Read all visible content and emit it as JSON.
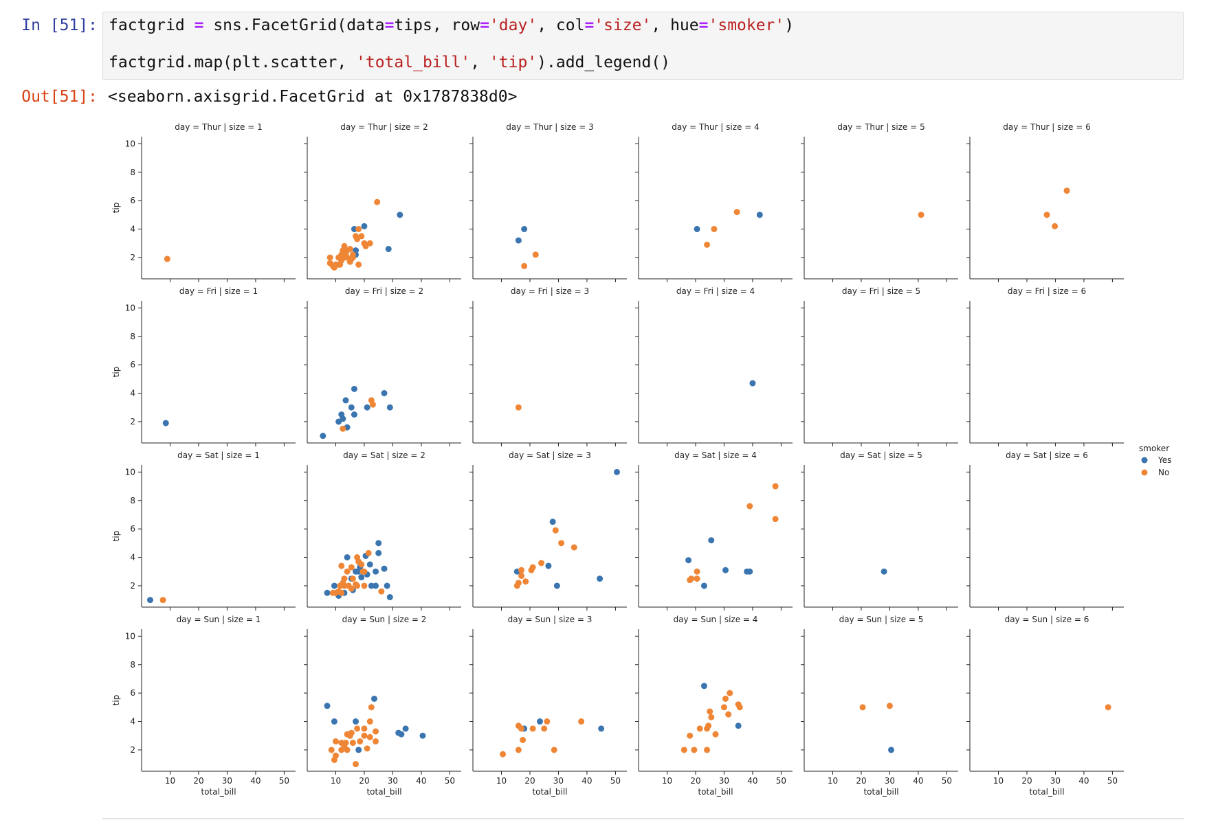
{
  "notebook": {
    "input_prompt": "In [51]:",
    "output_prompt": "Out[51]:",
    "code_line1": [
      {
        "t": "factgrid ",
        "c": ""
      },
      {
        "t": "=",
        "c": "kw"
      },
      {
        "t": " sns.FacetGrid(data",
        "c": ""
      },
      {
        "t": "=",
        "c": "kw"
      },
      {
        "t": "tips, row",
        "c": ""
      },
      {
        "t": "=",
        "c": "kw"
      },
      {
        "t": "'day'",
        "c": "st"
      },
      {
        "t": ", col",
        "c": ""
      },
      {
        "t": "=",
        "c": "kw"
      },
      {
        "t": "'size'",
        "c": "st"
      },
      {
        "t": ", hue",
        "c": ""
      },
      {
        "t": "=",
        "c": "kw"
      },
      {
        "t": "'smoker'",
        "c": "st"
      },
      {
        "t": ")",
        "c": ""
      }
    ],
    "code_line2": [
      {
        "t": "factgrid.map(plt.scatter, ",
        "c": ""
      },
      {
        "t": "'total_bill'",
        "c": "st"
      },
      {
        "t": ", ",
        "c": ""
      },
      {
        "t": "'tip'",
        "c": "st"
      },
      {
        "t": ").add_legend()",
        "c": ""
      }
    ],
    "output_text": "<seaborn.axisgrid.FacetGrid at 0x1787838d0>"
  },
  "chart_data": {
    "type": "scatter",
    "xlabel": "total_bill",
    "ylabel": "tip",
    "xlim": [
      0,
      54
    ],
    "ylim": [
      0.5,
      10.5
    ],
    "xticks": [
      10,
      20,
      30,
      40,
      50
    ],
    "yticks": [
      2,
      4,
      6,
      8,
      10
    ],
    "legend": {
      "title": "smoker",
      "placement": "right",
      "entries": [
        {
          "name": "Yes",
          "color": "#3a75b0"
        },
        {
          "name": "No",
          "color": "#ef8636"
        }
      ]
    },
    "rows": [
      "Thur",
      "Fri",
      "Sat",
      "Sun"
    ],
    "cols": [
      1,
      2,
      3,
      4,
      5,
      6
    ],
    "panel_title_format": "day = {day} | size = {size}",
    "panels": [
      {
        "day": "Thur",
        "size": 1,
        "yes": [],
        "no": [
          [
            9,
            1.9
          ]
        ]
      },
      {
        "day": "Thur",
        "size": 2,
        "yes": [
          [
            16.5,
            4
          ],
          [
            20,
            4.2
          ],
          [
            17,
            2.5
          ],
          [
            32.5,
            5
          ],
          [
            28.5,
            2.6
          ],
          [
            17,
            2.2
          ]
        ],
        "no": [
          [
            24.5,
            5.9
          ],
          [
            18,
            4
          ],
          [
            17,
            3.5
          ],
          [
            20,
            3
          ],
          [
            22,
            3
          ],
          [
            10,
            1.5
          ],
          [
            11,
            1.5
          ],
          [
            12,
            1.8
          ],
          [
            13,
            2
          ],
          [
            14,
            2.5
          ],
          [
            15,
            2.6
          ],
          [
            12,
            2.2
          ],
          [
            16,
            2
          ],
          [
            18,
            1.5
          ],
          [
            8,
            1.6
          ],
          [
            9,
            1.4
          ],
          [
            11,
            2
          ],
          [
            13,
            2.8
          ],
          [
            19,
            3.5
          ],
          [
            15,
            1.7
          ],
          [
            8,
            2
          ],
          [
            9.5,
            1.3
          ],
          [
            11.5,
            1.5
          ],
          [
            14,
            2
          ],
          [
            16,
            2.2
          ],
          [
            17.5,
            3.3
          ],
          [
            20.5,
            2.8
          ],
          [
            12.5,
            2.5
          ],
          [
            15.5,
            1.9
          ],
          [
            13.5,
            2.3
          ]
        ]
      },
      {
        "day": "Thur",
        "size": 3,
        "yes": [
          [
            16,
            3.2
          ],
          [
            18,
            4
          ]
        ],
        "no": [
          [
            22,
            2.2
          ],
          [
            18,
            1.4
          ]
        ]
      },
      {
        "day": "Thur",
        "size": 4,
        "yes": [
          [
            20.5,
            4
          ],
          [
            42.5,
            5
          ]
        ],
        "no": [
          [
            26.5,
            4
          ],
          [
            34.5,
            5.2
          ],
          [
            24,
            2.9
          ]
        ]
      },
      {
        "day": "Thur",
        "size": 5,
        "yes": [],
        "no": [
          [
            41,
            5
          ]
        ]
      },
      {
        "day": "Thur",
        "size": 6,
        "yes": [],
        "no": [
          [
            27,
            5
          ],
          [
            34,
            6.7
          ],
          [
            29.8,
            4.2
          ]
        ]
      },
      {
        "day": "Fri",
        "size": 1,
        "yes": [
          [
            8.5,
            1.9
          ]
        ],
        "no": []
      },
      {
        "day": "Fri",
        "size": 2,
        "yes": [
          [
            16.5,
            4.3
          ],
          [
            13.5,
            3.5
          ],
          [
            15.5,
            3
          ],
          [
            27,
            4
          ],
          [
            29,
            3
          ],
          [
            21,
            3
          ],
          [
            12,
            2.5
          ],
          [
            11,
            2
          ],
          [
            12.5,
            2.2
          ],
          [
            16.5,
            2.5
          ],
          [
            14,
            1.6
          ],
          [
            5.5,
            1
          ]
        ],
        "no": [
          [
            22.5,
            3.5
          ],
          [
            23,
            3.2
          ],
          [
            12.5,
            1.5
          ]
        ]
      },
      {
        "day": "Fri",
        "size": 3,
        "yes": [],
        "no": [
          [
            16,
            3
          ]
        ]
      },
      {
        "day": "Fri",
        "size": 4,
        "yes": [
          [
            40,
            4.7
          ]
        ],
        "no": []
      },
      {
        "day": "Fri",
        "size": 5,
        "yes": [],
        "no": []
      },
      {
        "day": "Fri",
        "size": 6,
        "yes": [],
        "no": []
      },
      {
        "day": "Sat",
        "size": 1,
        "yes": [
          [
            3,
            1
          ]
        ],
        "no": [
          [
            7.5,
            1
          ]
        ]
      },
      {
        "day": "Sat",
        "size": 2,
        "yes": [
          [
            25,
            5
          ],
          [
            14,
            4
          ],
          [
            25,
            4.3
          ],
          [
            18.5,
            3.3
          ],
          [
            22,
            3.5
          ],
          [
            24,
            3
          ],
          [
            27,
            3.2
          ],
          [
            17,
            3
          ],
          [
            19,
            2.6
          ],
          [
            22.5,
            2
          ],
          [
            24,
            2
          ],
          [
            28,
            2
          ],
          [
            13,
            2
          ],
          [
            9.5,
            2
          ],
          [
            7,
            1.5
          ],
          [
            11,
            1.3
          ],
          [
            16,
            1.7
          ],
          [
            29,
            1.2
          ],
          [
            13,
            1.5
          ],
          [
            15.5,
            2.5
          ],
          [
            21,
            2.8
          ],
          [
            11,
            1.5
          ],
          [
            20.5,
            4.1
          ],
          [
            18,
            3
          ]
        ],
        "no": [
          [
            21.5,
            4.3
          ],
          [
            17.5,
            4
          ],
          [
            18,
            3.7
          ],
          [
            15.5,
            3.3
          ],
          [
            19.5,
            3
          ],
          [
            12,
            3.4
          ],
          [
            14,
            3
          ],
          [
            16,
            2.5
          ],
          [
            13,
            2.5
          ],
          [
            20,
            3
          ],
          [
            20,
            2
          ],
          [
            17,
            2.1
          ],
          [
            11.5,
            2
          ],
          [
            12.5,
            2.2
          ],
          [
            14.5,
            2
          ],
          [
            11,
            1.6
          ],
          [
            9,
            1.5
          ],
          [
            10,
            1.5
          ],
          [
            26,
            1.6
          ],
          [
            17.5,
            2
          ],
          [
            12,
            1.5
          ],
          [
            15.5,
            1.8
          ],
          [
            19,
            3.5
          ],
          [
            13,
            2
          ]
        ]
      },
      {
        "day": "Sat",
        "size": 3,
        "yes": [
          [
            50.5,
            10
          ],
          [
            28,
            6.5
          ],
          [
            44.5,
            2.5
          ],
          [
            26.5,
            3.4
          ],
          [
            29.5,
            2
          ],
          [
            15.5,
            3
          ]
        ],
        "no": [
          [
            29,
            5.9
          ],
          [
            31,
            5
          ],
          [
            35.5,
            4.7
          ],
          [
            24,
            3.6
          ],
          [
            21,
            3.3
          ],
          [
            20.5,
            3.1
          ],
          [
            17,
            3.1
          ],
          [
            16,
            2.2
          ],
          [
            18.5,
            2.3
          ],
          [
            17,
            2.7
          ],
          [
            15.5,
            2
          ]
        ]
      },
      {
        "day": "Sat",
        "size": 4,
        "yes": [
          [
            25.5,
            5.2
          ],
          [
            17.5,
            3.8
          ],
          [
            30.5,
            3.1
          ],
          [
            38,
            3
          ],
          [
            39,
            3
          ],
          [
            23,
            2
          ]
        ],
        "no": [
          [
            48,
            9
          ],
          [
            39,
            7.6
          ],
          [
            48,
            6.7
          ],
          [
            20.5,
            3
          ],
          [
            20.5,
            2.5
          ],
          [
            18,
            2.4
          ],
          [
            18.5,
            2.5
          ]
        ]
      },
      {
        "day": "Sat",
        "size": 5,
        "yes": [
          [
            28,
            3
          ]
        ],
        "no": []
      },
      {
        "day": "Sat",
        "size": 6,
        "yes": [],
        "no": []
      },
      {
        "day": "Sun",
        "size": 1,
        "yes": [],
        "no": []
      },
      {
        "day": "Sun",
        "size": 2,
        "yes": [
          [
            7,
            5.1
          ],
          [
            23.5,
            5.6
          ],
          [
            9.5,
            4
          ],
          [
            17,
            4
          ],
          [
            34.5,
            3.5
          ],
          [
            32,
            3.2
          ],
          [
            33,
            3.1
          ],
          [
            40.5,
            3
          ],
          [
            18,
            2
          ],
          [
            15,
            3
          ]
        ],
        "no": [
          [
            22.5,
            5
          ],
          [
            20,
            3.5
          ],
          [
            22,
            4
          ],
          [
            17.5,
            3.5
          ],
          [
            14,
            3.1
          ],
          [
            15,
            3
          ],
          [
            24,
            3.3
          ],
          [
            16,
            2.5
          ],
          [
            12,
            2.5
          ],
          [
            13,
            2.3
          ],
          [
            10,
            2.6
          ],
          [
            8.5,
            2
          ],
          [
            12,
            2
          ],
          [
            14,
            2
          ],
          [
            10,
            1.6
          ],
          [
            9.5,
            1.3
          ],
          [
            21,
            2.1
          ],
          [
            24,
            2.6
          ],
          [
            17,
            1
          ],
          [
            20,
            3
          ],
          [
            15.5,
            3.2
          ],
          [
            13.5,
            2.5
          ],
          [
            18.5,
            2.6
          ],
          [
            22,
            2.9
          ]
        ]
      },
      {
        "day": "Sun",
        "size": 3,
        "yes": [
          [
            23.5,
            4
          ],
          [
            45,
            3.5
          ],
          [
            18,
            3.5
          ]
        ],
        "no": [
          [
            26,
            4
          ],
          [
            38,
            4
          ],
          [
            16,
            3.7
          ],
          [
            17,
            3.5
          ],
          [
            21,
            3.5
          ],
          [
            25,
            3.5
          ],
          [
            17.5,
            2.7
          ],
          [
            16,
            2
          ],
          [
            28.5,
            2
          ],
          [
            10.5,
            1.7
          ]
        ]
      },
      {
        "day": "Sun",
        "size": 4,
        "yes": [
          [
            23,
            6.5
          ],
          [
            35,
            3.7
          ]
        ],
        "no": [
          [
            32,
            6
          ],
          [
            30.5,
            5.6
          ],
          [
            35,
            5.2
          ],
          [
            35.5,
            5
          ],
          [
            30,
            5
          ],
          [
            25,
            4.7
          ],
          [
            25.5,
            4.3
          ],
          [
            31.5,
            4.5
          ],
          [
            18,
            3
          ],
          [
            21.5,
            3.5
          ],
          [
            24.5,
            3.7
          ],
          [
            24,
            3.5
          ],
          [
            27,
            3.1
          ],
          [
            16,
            2
          ],
          [
            19.5,
            2
          ],
          [
            24,
            2
          ]
        ]
      },
      {
        "day": "Sun",
        "size": 5,
        "yes": [
          [
            30.5,
            2
          ]
        ],
        "no": [
          [
            20.5,
            5
          ],
          [
            30,
            5.1
          ]
        ]
      },
      {
        "day": "Sun",
        "size": 6,
        "yes": [],
        "no": [
          [
            48.5,
            5
          ]
        ]
      }
    ]
  }
}
